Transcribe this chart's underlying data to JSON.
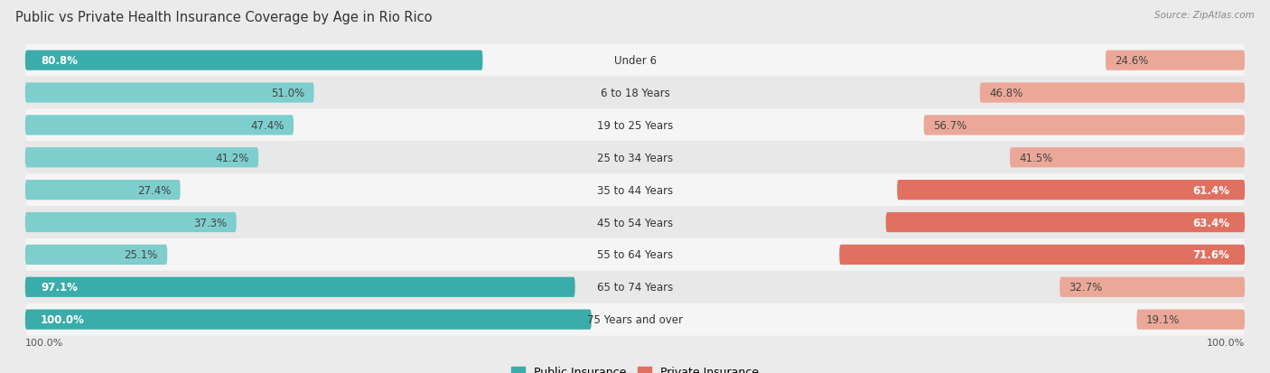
{
  "title": "Public vs Private Health Insurance Coverage by Age in Rio Rico",
  "source": "Source: ZipAtlas.com",
  "categories": [
    "Under 6",
    "6 to 18 Years",
    "19 to 25 Years",
    "25 to 34 Years",
    "35 to 44 Years",
    "45 to 54 Years",
    "55 to 64 Years",
    "65 to 74 Years",
    "75 Years and over"
  ],
  "public_values": [
    80.8,
    51.0,
    47.4,
    41.2,
    27.4,
    37.3,
    25.1,
    97.1,
    100.0
  ],
  "private_values": [
    24.6,
    46.8,
    56.7,
    41.5,
    61.4,
    63.4,
    71.6,
    32.7,
    19.1
  ],
  "public_color_high": "#3AACAA",
  "public_color_low": "#7ECECE",
  "private_color_high": "#E07060",
  "private_color_low": "#EBA898",
  "bg_color": "#EBEBEB",
  "row_bg": "#F5F5F5",
  "row_bg_alt": "#E8E8E8",
  "title_fontsize": 10.5,
  "label_fontsize": 8.5,
  "value_fontsize": 8.5,
  "legend_fontsize": 9,
  "axis_label_fontsize": 8,
  "high_threshold": 60.0,
  "white_label_threshold": 70.0
}
